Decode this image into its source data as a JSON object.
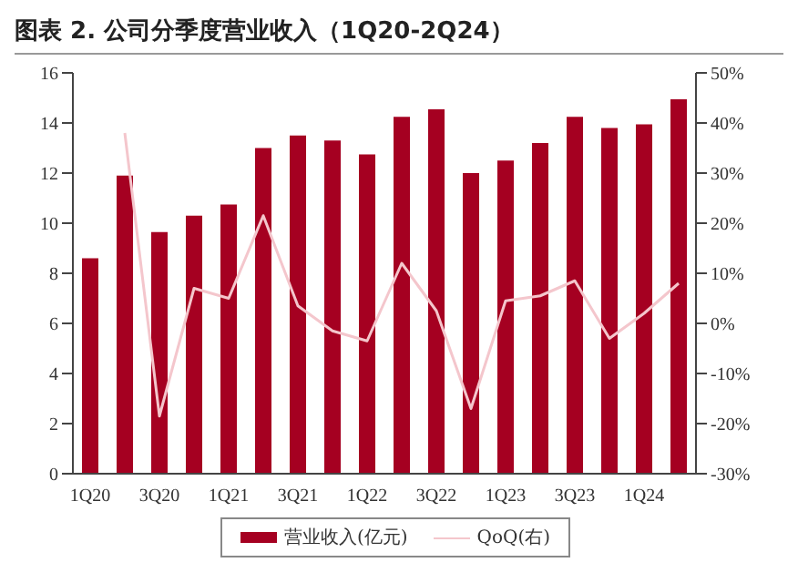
{
  "chart_data": {
    "type": "bar",
    "title": "图表 2. 公司分季度营业收入（1Q20-2Q24）",
    "categories": [
      "1Q20",
      null,
      "3Q20",
      null,
      "1Q21",
      null,
      "3Q21",
      null,
      "1Q22",
      null,
      "3Q22",
      null,
      "1Q23",
      null,
      "3Q23",
      null,
      "1Q24",
      null
    ],
    "series": [
      {
        "name": "营业收入(亿元)",
        "color": "#a50021",
        "values": [
          8.6,
          11.9,
          9.65,
          10.3,
          10.75,
          13.0,
          13.5,
          13.3,
          12.75,
          14.25,
          14.55,
          12.0,
          12.5,
          13.2,
          14.25,
          13.8,
          13.95,
          14.95
        ]
      },
      {
        "name": "QoQ(右)",
        "type": "line",
        "axis": "y2",
        "color": "#f4c6cc",
        "marker": "none",
        "line_style": "solid",
        "values": [
          null,
          38,
          -18.5,
          7,
          5,
          21.5,
          3.5,
          -1.5,
          -3.5,
          12,
          2.5,
          -17,
          4.5,
          5.5,
          8.5,
          -3,
          2,
          8
        ]
      }
    ],
    "ylim": [
      0,
      16
    ],
    "yticks": [
      0,
      2,
      4,
      6,
      8,
      10,
      12,
      14,
      16
    ],
    "y2lim": [
      -30,
      50
    ],
    "y2ticks": [
      {
        "value": -30,
        "label": "-30%"
      },
      {
        "value": -20,
        "label": "-20%"
      },
      {
        "value": -10,
        "label": "-10%"
      },
      {
        "value": 0,
        "label": "0%"
      },
      {
        "value": 10,
        "label": "10%"
      },
      {
        "value": 20,
        "label": "20%"
      },
      {
        "value": 30,
        "label": "30%"
      },
      {
        "value": 40,
        "label": "40%"
      },
      {
        "value": 50,
        "label": "50%"
      }
    ],
    "grid": false,
    "legend": "bottom"
  }
}
